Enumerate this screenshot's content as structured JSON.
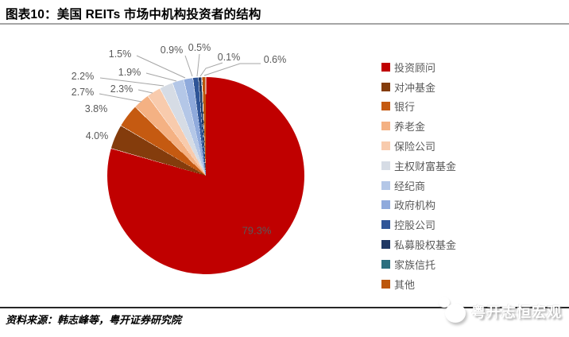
{
  "title": "图表10：美国 REITs 市场中机构投资者的结构",
  "source_note": "资料来源：韩志峰等，粤开证券研究院",
  "watermark": {
    "text": "粤开志恒宏观",
    "icon": "megaphone-icon"
  },
  "colors": {
    "accent_red": "#C00000",
    "title_rule": "#A6A6A6",
    "footer_rule": "#262626",
    "leader_line": "#A6A6A6",
    "data_label_text": "#595959",
    "legend_text": "#595959"
  },
  "chart_data": {
    "type": "pie",
    "title": "美国 REITs 市场中机构投资者的结构",
    "legend_position": "right",
    "start_angle_deg": 0,
    "direction": "clockwise",
    "labels_format": "percent_one_decimal",
    "series": [
      {
        "name": "投资顾问",
        "value": 79.3,
        "color": "#C00000"
      },
      {
        "name": "对冲基金",
        "value": 4.0,
        "color": "#843C0C"
      },
      {
        "name": "银行",
        "value": 3.8,
        "color": "#C55A11"
      },
      {
        "name": "养老金",
        "value": 2.7,
        "color": "#F4B183"
      },
      {
        "name": "保险公司",
        "value": 2.3,
        "color": "#F8CBAD"
      },
      {
        "name": "主权财富基金",
        "value": 2.2,
        "color": "#D6DCE5"
      },
      {
        "name": "经纪商",
        "value": 1.9,
        "color": "#B4C7E7"
      },
      {
        "name": "政府机构",
        "value": 1.5,
        "color": "#8FAADC"
      },
      {
        "name": "控股公司",
        "value": 0.9,
        "color": "#2F5597"
      },
      {
        "name": "私募股权基金",
        "value": 0.5,
        "color": "#1F3864"
      },
      {
        "name": "家族信托",
        "value": 0.1,
        "color": "#2B6F7F"
      },
      {
        "name": "其他",
        "value": 0.6,
        "color": "#BC560A"
      }
    ]
  }
}
